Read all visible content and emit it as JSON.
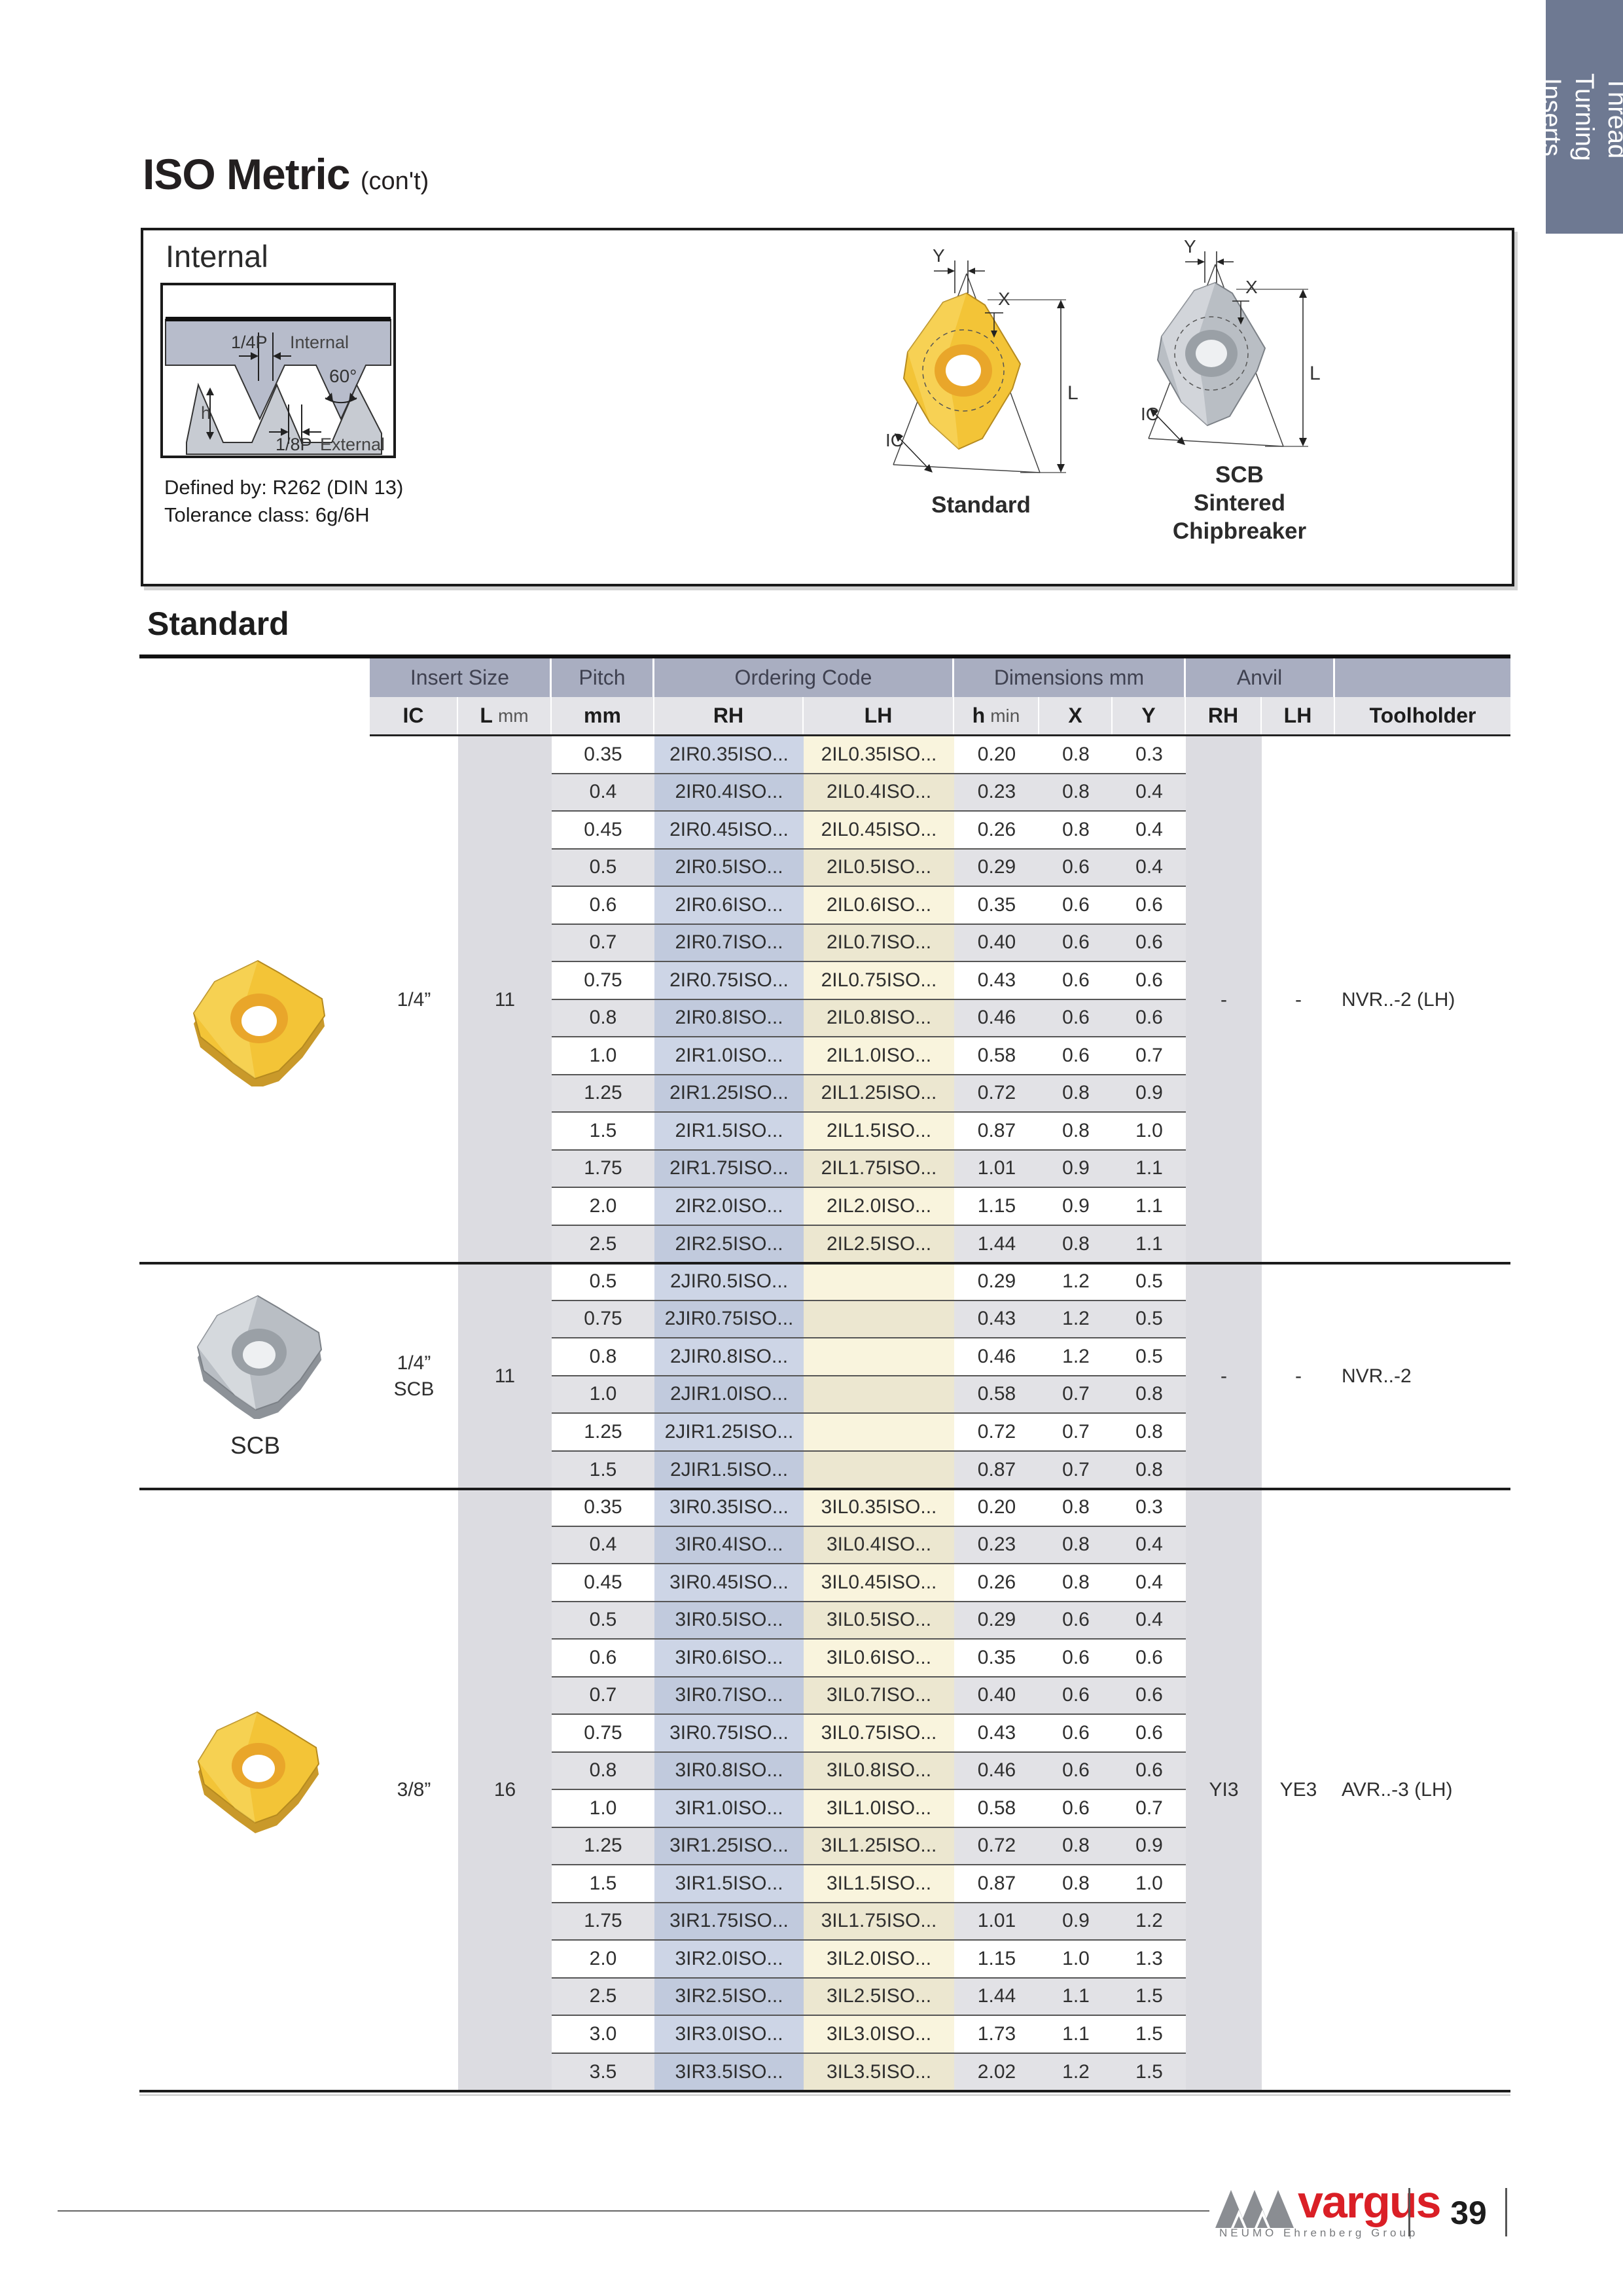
{
  "page": {
    "title": "ISO Metric",
    "title_suffix": "(con't)"
  },
  "sidebar": {
    "text": "Thread Turning\nInserts"
  },
  "internal_box": {
    "heading": "Internal",
    "defined_by": "Defined by: R262 (DIN 13)",
    "tolerance": "Tolerance class: 6g/6H",
    "profile_labels": {
      "quarter": "1/4P",
      "internal": "Internal",
      "angle": "60°",
      "h": "h",
      "eighth": "1/8P",
      "external": "External"
    },
    "standard_caption": "Standard",
    "scb_caption": "SCB\nSintered\nChipbreaker",
    "dim_y": "Y",
    "dim_x": "X",
    "dim_l": "L",
    "dim_ic": "IC"
  },
  "section": {
    "heading": "Standard"
  },
  "table": {
    "group_headers": [
      "Insert Size",
      "Pitch",
      "Ordering Code",
      "Dimensions mm",
      "Anvil"
    ],
    "subheaders": [
      {
        "b": "IC"
      },
      {
        "b": "L",
        "l": "mm"
      },
      {
        "b": "mm"
      },
      {
        "b": "RH"
      },
      {
        "b": "LH"
      },
      {
        "b": "h",
        "l": "min"
      },
      {
        "b": "X"
      },
      {
        "b": "Y"
      },
      {
        "b": "RH"
      },
      {
        "b": "LH"
      },
      {
        "b": "Toolholder"
      }
    ],
    "groups": [
      {
        "ic": "1/4”",
        "l": "11",
        "anvil_rh": "-",
        "anvil_lh": "-",
        "toolholder": "NVR..-2 (LH)",
        "rows": [
          [
            "0.35",
            "2IR0.35ISO...",
            "2IL0.35ISO...",
            "0.20",
            "0.8",
            "0.3"
          ],
          [
            "0.4",
            "2IR0.4ISO...",
            "2IL0.4ISO...",
            "0.23",
            "0.8",
            "0.4"
          ],
          [
            "0.45",
            "2IR0.45ISO...",
            "2IL0.45ISO...",
            "0.26",
            "0.8",
            "0.4"
          ],
          [
            "0.5",
            "2IR0.5ISO...",
            "2IL0.5ISO...",
            "0.29",
            "0.6",
            "0.4"
          ],
          [
            "0.6",
            "2IR0.6ISO...",
            "2IL0.6ISO...",
            "0.35",
            "0.6",
            "0.6"
          ],
          [
            "0.7",
            "2IR0.7ISO...",
            "2IL0.7ISO...",
            "0.40",
            "0.6",
            "0.6"
          ],
          [
            "0.75",
            "2IR0.75ISO...",
            "2IL0.75ISO...",
            "0.43",
            "0.6",
            "0.6"
          ],
          [
            "0.8",
            "2IR0.8ISO...",
            "2IL0.8ISO...",
            "0.46",
            "0.6",
            "0.6"
          ],
          [
            "1.0",
            "2IR1.0ISO...",
            "2IL1.0ISO...",
            "0.58",
            "0.6",
            "0.7"
          ],
          [
            "1.25",
            "2IR1.25ISO...",
            "2IL1.25ISO...",
            "0.72",
            "0.8",
            "0.9"
          ],
          [
            "1.5",
            "2IR1.5ISO...",
            "2IL1.5ISO...",
            "0.87",
            "0.8",
            "1.0"
          ],
          [
            "1.75",
            "2IR1.75ISO...",
            "2IL1.75ISO...",
            "1.01",
            "0.9",
            "1.1"
          ],
          [
            "2.0",
            "2IR2.0ISO...",
            "2IL2.0ISO...",
            "1.15",
            "0.9",
            "1.1"
          ],
          [
            "2.5",
            "2IR2.5ISO...",
            "2IL2.5ISO...",
            "1.44",
            "0.8",
            "1.1"
          ]
        ]
      },
      {
        "ic": "1/4”\nSCB",
        "l": "11",
        "anvil_rh": "-",
        "anvil_lh": "-",
        "toolholder": "NVR..-2",
        "rows": [
          [
            "0.5",
            "2JIR0.5ISO...",
            "",
            "0.29",
            "1.2",
            "0.5"
          ],
          [
            "0.75",
            "2JIR0.75ISO...",
            "",
            "0.43",
            "1.2",
            "0.5"
          ],
          [
            "0.8",
            "2JIR0.8ISO...",
            "",
            "0.46",
            "1.2",
            "0.5"
          ],
          [
            "1.0",
            "2JIR1.0ISO...",
            "",
            "0.58",
            "0.7",
            "0.8"
          ],
          [
            "1.25",
            "2JIR1.25ISO...",
            "",
            "0.72",
            "0.7",
            "0.8"
          ],
          [
            "1.5",
            "2JIR1.5ISO...",
            "",
            "0.87",
            "0.7",
            "0.8"
          ]
        ]
      },
      {
        "ic": "3/8”",
        "l": "16",
        "anvil_rh": "YI3",
        "anvil_lh": "YE3",
        "toolholder": "AVR..-3 (LH)",
        "rows": [
          [
            "0.35",
            "3IR0.35ISO...",
            "3IL0.35ISO...",
            "0.20",
            "0.8",
            "0.3"
          ],
          [
            "0.4",
            "3IR0.4ISO...",
            "3IL0.4ISO...",
            "0.23",
            "0.8",
            "0.4"
          ],
          [
            "0.45",
            "3IR0.45ISO...",
            "3IL0.45ISO...",
            "0.26",
            "0.8",
            "0.4"
          ],
          [
            "0.5",
            "3IR0.5ISO...",
            "3IL0.5ISO...",
            "0.29",
            "0.6",
            "0.4"
          ],
          [
            "0.6",
            "3IR0.6ISO...",
            "3IL0.6ISO...",
            "0.35",
            "0.6",
            "0.6"
          ],
          [
            "0.7",
            "3IR0.7ISO...",
            "3IL0.7ISO...",
            "0.40",
            "0.6",
            "0.6"
          ],
          [
            "0.75",
            "3IR0.75ISO...",
            "3IL0.75ISO...",
            "0.43",
            "0.6",
            "0.6"
          ],
          [
            "0.8",
            "3IR0.8ISO...",
            "3IL0.8ISO...",
            "0.46",
            "0.6",
            "0.6"
          ],
          [
            "1.0",
            "3IR1.0ISO...",
            "3IL1.0ISO...",
            "0.58",
            "0.6",
            "0.7"
          ],
          [
            "1.25",
            "3IR1.25ISO...",
            "3IL1.25ISO...",
            "0.72",
            "0.8",
            "0.9"
          ],
          [
            "1.5",
            "3IR1.5ISO...",
            "3IL1.5ISO...",
            "0.87",
            "0.8",
            "1.0"
          ],
          [
            "1.75",
            "3IR1.75ISO...",
            "3IL1.75ISO...",
            "1.01",
            "0.9",
            "1.2"
          ],
          [
            "2.0",
            "3IR2.0ISO...",
            "3IL2.0ISO...",
            "1.15",
            "1.0",
            "1.3"
          ],
          [
            "2.5",
            "3IR2.5ISO...",
            "3IL2.5ISO...",
            "1.44",
            "1.1",
            "1.5"
          ],
          [
            "3.0",
            "3IR3.0ISO...",
            "3IL3.0ISO...",
            "1.73",
            "1.1",
            "1.5"
          ],
          [
            "3.5",
            "3IR3.5ISO...",
            "3IL3.5ISO...",
            "2.02",
            "1.2",
            "1.5"
          ]
        ]
      }
    ],
    "scb_photo_caption": "SCB"
  },
  "footer": {
    "brand": "vargus",
    "brand_sub": "NEUMO Ehrenberg Group",
    "page_number": "39"
  },
  "colors": {
    "tab_bg": "#6e7992",
    "hdr_bg": "#a9aec1",
    "sub_bg": "#e4e4e8",
    "row_alt": "#e2e2e6",
    "col_l": "#dcdce1",
    "rh_odd": "#cdd5e6",
    "rh_even": "#c1cadd",
    "lh_odd": "#f9f4dd",
    "lh_even": "#ece7d0",
    "brand_red": "#da1f26",
    "insert_yellow": "#f3c437",
    "insert_gray": "#b9bec4"
  }
}
